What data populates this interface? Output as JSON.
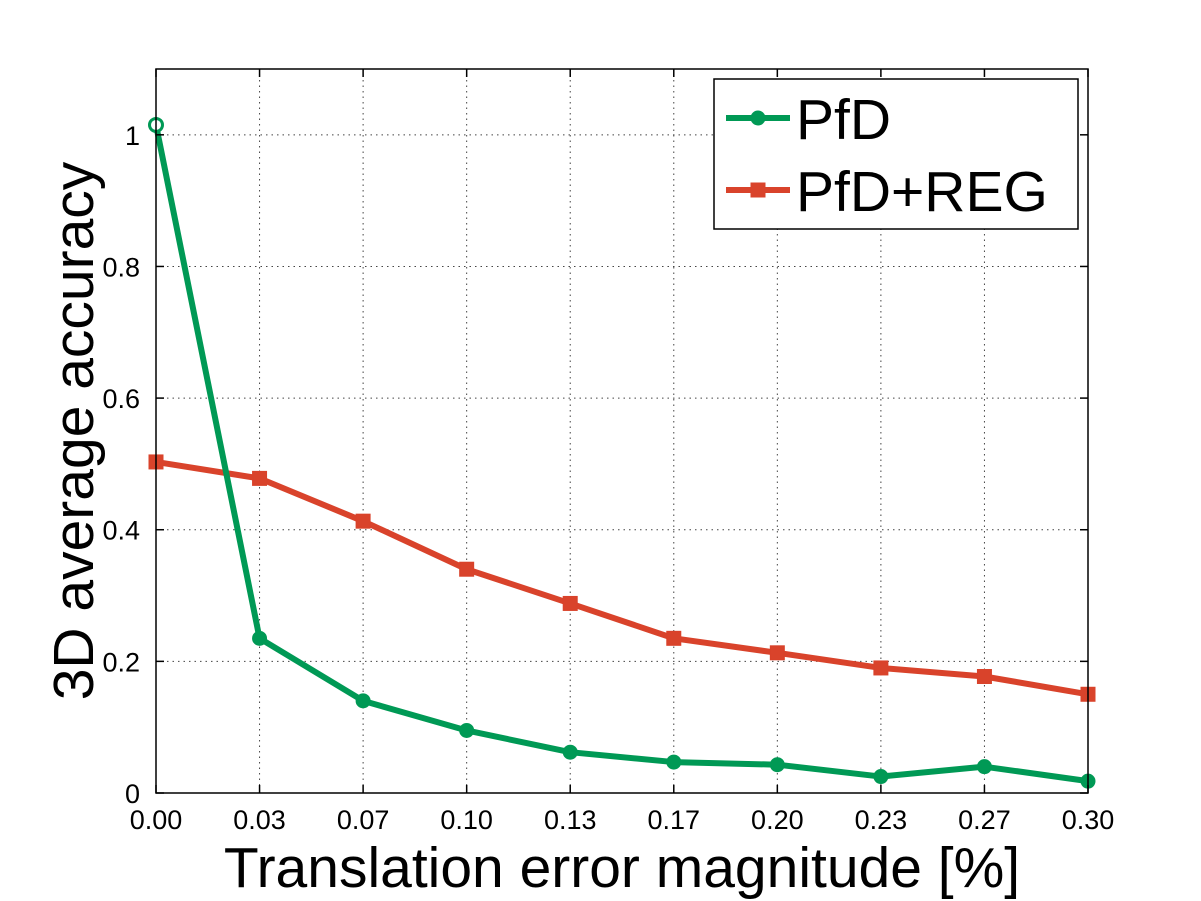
{
  "chart_data": {
    "type": "line",
    "title": "",
    "xlabel": "Translation error magnitude [%]",
    "ylabel": "3D average accuracy",
    "x": [
      0.0,
      0.03,
      0.07,
      0.1,
      0.13,
      0.17,
      0.2,
      0.23,
      0.27,
      0.3
    ],
    "x_tick_labels": [
      "0.00",
      "0.03",
      "0.07",
      "0.10",
      "0.13",
      "0.17",
      "0.20",
      "0.23",
      "0.27",
      "0.30"
    ],
    "y_ticks": [
      0,
      0.2,
      0.4,
      0.6,
      0.8,
      1
    ],
    "y_tick_labels": [
      "0",
      "0.2",
      "0.4",
      "0.6",
      "0.8",
      "1"
    ],
    "ylim": [
      0,
      1.1
    ],
    "grid": true,
    "legend_position": "top-right",
    "series": [
      {
        "name": "PfD",
        "color": "#009955",
        "marker": "circle",
        "values": [
          1.015,
          0.235,
          0.14,
          0.095,
          0.062,
          0.047,
          0.043,
          0.025,
          0.04,
          0.018
        ]
      },
      {
        "name": "PfD+REG",
        "color": "#d9432b",
        "marker": "square",
        "values": [
          0.503,
          0.478,
          0.413,
          0.34,
          0.288,
          0.235,
          0.213,
          0.19,
          0.177,
          0.15
        ]
      }
    ]
  }
}
